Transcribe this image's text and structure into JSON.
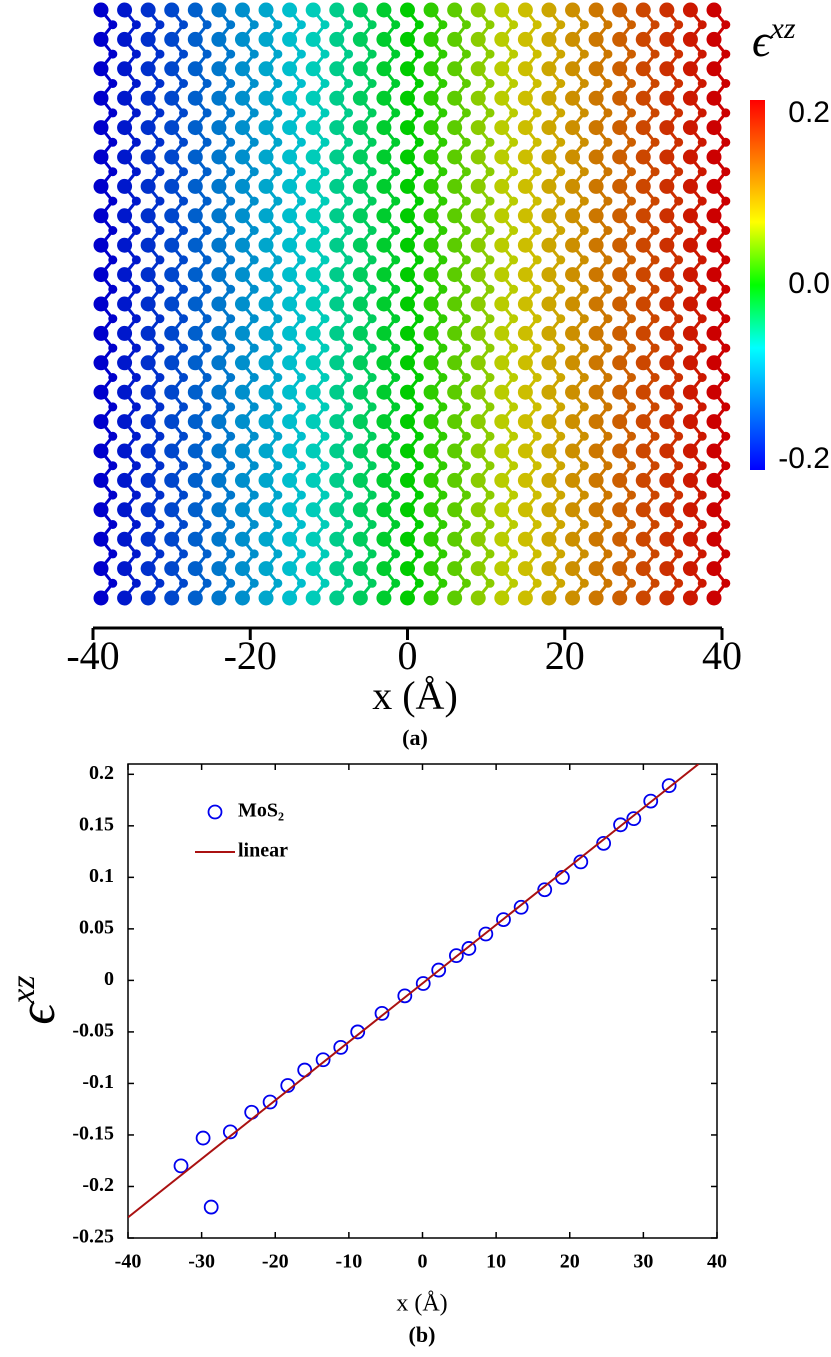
{
  "chart_data": [
    {
      "type": "lattice",
      "xlim": [
        -40,
        40
      ],
      "xticks": [
        -40,
        -20,
        0,
        20,
        40
      ],
      "xlabel": "x (Å)",
      "caption": "(a)",
      "colorbar": {
        "label": "ϵ",
        "label_sup": "xz",
        "clim": [
          -0.2,
          0.2
        ],
        "ticks": [
          0.2,
          {
            "value": 0,
            "label": "0.0"
          },
          -0.2
        ]
      }
    },
    {
      "type": "scatter",
      "xlim": [
        -40,
        40
      ],
      "xticks": [
        -40,
        -30,
        -20,
        -10,
        0,
        10,
        20,
        30,
        40
      ],
      "ylim": [
        -0.25,
        0.21
      ],
      "yticks": [
        0.2,
        0.15,
        0.1,
        0.05,
        0,
        -0.05,
        -0.1,
        -0.15,
        -0.2,
        -0.25
      ],
      "xlabel": "x (Å)",
      "ylabel": "ϵ",
      "ylabel_sup": "xz",
      "caption": "(b)",
      "legend": "upper-left",
      "series": [
        {
          "name": "MoS₂",
          "kind": "marker",
          "color": "#0000ee",
          "x": [
            -32.8,
            -29.8,
            -28.7,
            -26.1,
            -23.2,
            -20.7,
            -18.3,
            -16.0,
            -13.5,
            -11.1,
            -8.8,
            -5.5,
            -2.4,
            0.1,
            2.2,
            4.6,
            6.3,
            8.6,
            11.0,
            13.4,
            16.6,
            19.0,
            21.5,
            24.6,
            26.9,
            28.7,
            31.0,
            33.5
          ],
          "values": [
            -0.18,
            -0.153,
            -0.22,
            -0.147,
            -0.128,
            -0.118,
            -0.102,
            -0.087,
            -0.077,
            -0.065,
            -0.05,
            -0.032,
            -0.015,
            -0.003,
            0.01,
            0.024,
            0.031,
            0.045,
            0.059,
            0.071,
            0.088,
            0.1,
            0.115,
            0.133,
            0.151,
            0.157,
            0.174,
            0.189
          ]
        },
        {
          "name": "linear",
          "kind": "line",
          "color": "#aa1111",
          "x": [
            -40,
            37.5
          ],
          "values": [
            -0.23,
            0.21
          ]
        }
      ]
    }
  ]
}
